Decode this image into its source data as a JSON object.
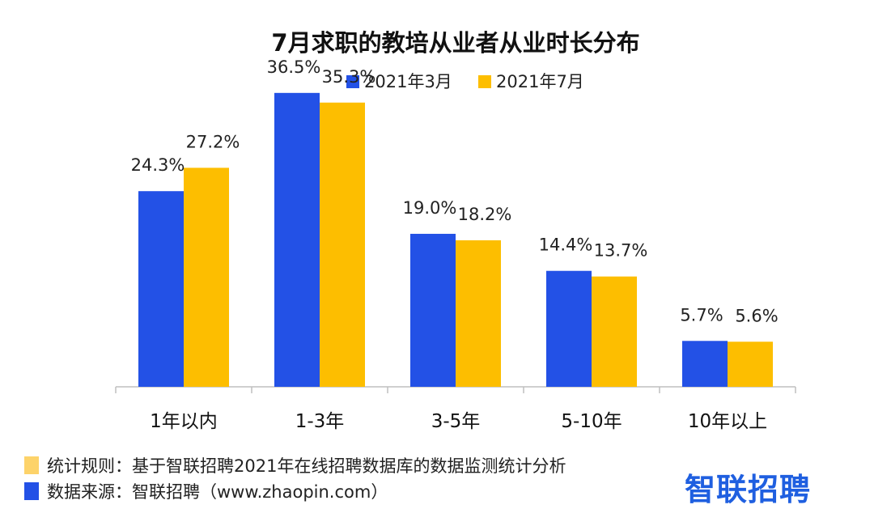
{
  "chart_data": {
    "type": "bar",
    "title": "7月求职的教培从业者从业时长分布",
    "categories": [
      "1年以内",
      "1-3年",
      "3-5年",
      "5-10年",
      "10年以上"
    ],
    "series": [
      {
        "name": "2021年3月",
        "color": "#2351e6",
        "values": [
          24.3,
          36.5,
          19.0,
          14.4,
          5.7
        ],
        "labels": [
          "24.3%",
          "36.5%",
          "19.0%",
          "14.4%",
          "5.7%"
        ]
      },
      {
        "name": "2021年7月",
        "color": "#fdbe00",
        "values": [
          27.2,
          35.3,
          18.2,
          13.7,
          5.6
        ],
        "labels": [
          "27.2%",
          "35.3%",
          "18.2%",
          "13.7%",
          "5.6%"
        ]
      }
    ],
    "ylim": [
      0,
      40
    ],
    "legend": "top-center",
    "grid": false,
    "xlabel": "",
    "ylabel": ""
  },
  "footer": {
    "rule_text": "统计规则：基于智联招聘2021年在线招聘数据库的数据监测统计分析",
    "rule_color": "#fdd36a",
    "source_text": "数据来源：智联招聘（www.zhaopin.com）",
    "source_color": "#2351e6"
  },
  "logo": {
    "text": "智联招聘",
    "icon": "zhaopin-logo"
  }
}
